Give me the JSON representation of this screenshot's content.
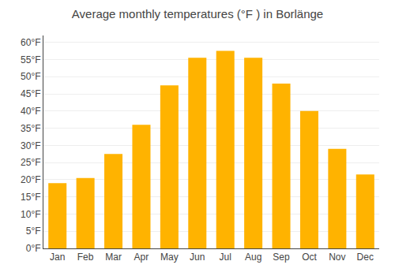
{
  "chart_data": {
    "type": "bar",
    "title": "Average monthly temperatures (°F ) in Borlänge",
    "categories": [
      "Jan",
      "Feb",
      "Mar",
      "Apr",
      "May",
      "Jun",
      "Jul",
      "Aug",
      "Sep",
      "Oct",
      "Nov",
      "Dec"
    ],
    "values": [
      19,
      20.5,
      27.5,
      36,
      47.5,
      55.5,
      57.5,
      55.5,
      48,
      40,
      29,
      21.5
    ],
    "color": "#FFB300",
    "ylim": [
      0,
      62
    ],
    "yticks": [
      {
        "value": 0,
        "label": "0°F"
      },
      {
        "value": 5,
        "label": "5°F"
      },
      {
        "value": 10,
        "label": "10°F"
      },
      {
        "value": 15,
        "label": "15°F"
      },
      {
        "value": 20,
        "label": "20°F"
      },
      {
        "value": 25,
        "label": "25°F"
      },
      {
        "value": 30,
        "label": "30°F"
      },
      {
        "value": 35,
        "label": "35°F"
      },
      {
        "value": 40,
        "label": "40°F"
      },
      {
        "value": 45,
        "label": "45°F"
      },
      {
        "value": 50,
        "label": "50°F"
      },
      {
        "value": 55,
        "label": "55°F"
      },
      {
        "value": 60,
        "label": "60°F"
      }
    ],
    "grid": true
  }
}
